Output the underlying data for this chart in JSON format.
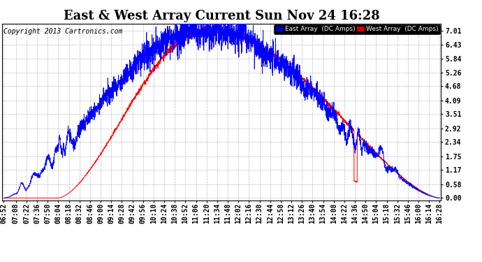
{
  "title": "East & West Array Current Sun Nov 24 16:28",
  "copyright": "Copyright 2013 Cartronics.com",
  "legend_east": "East Array  (DC Amps)",
  "legend_west": "West Array  (DC Amps)",
  "east_color": "#0000FF",
  "west_color": "#FF0000",
  "legend_east_bg": "#0000CC",
  "legend_west_bg": "#CC0000",
  "yticks": [
    0.0,
    0.58,
    1.17,
    1.75,
    2.34,
    2.92,
    3.51,
    4.09,
    4.68,
    5.26,
    5.84,
    6.43,
    7.01
  ],
  "ymax": 7.3,
  "ymin": -0.1,
  "time_labels": [
    "06:52",
    "07:08",
    "07:22",
    "07:36",
    "07:50",
    "08:04",
    "08:18",
    "08:32",
    "08:46",
    "09:00",
    "09:14",
    "09:28",
    "09:42",
    "09:56",
    "10:10",
    "10:24",
    "10:38",
    "10:52",
    "11:06",
    "11:20",
    "11:34",
    "11:48",
    "12:02",
    "12:16",
    "12:30",
    "12:44",
    "12:58",
    "13:12",
    "13:26",
    "13:40",
    "13:54",
    "14:08",
    "14:22",
    "14:36",
    "14:50",
    "15:04",
    "15:18",
    "15:32",
    "15:46",
    "16:00",
    "16:14",
    "16:28"
  ],
  "background_color": "#FFFFFF",
  "grid_color": "#AAAAAA",
  "title_fontsize": 13,
  "tick_fontsize": 7,
  "copyright_fontsize": 7,
  "figwidth": 6.9,
  "figheight": 3.75,
  "dpi": 100
}
